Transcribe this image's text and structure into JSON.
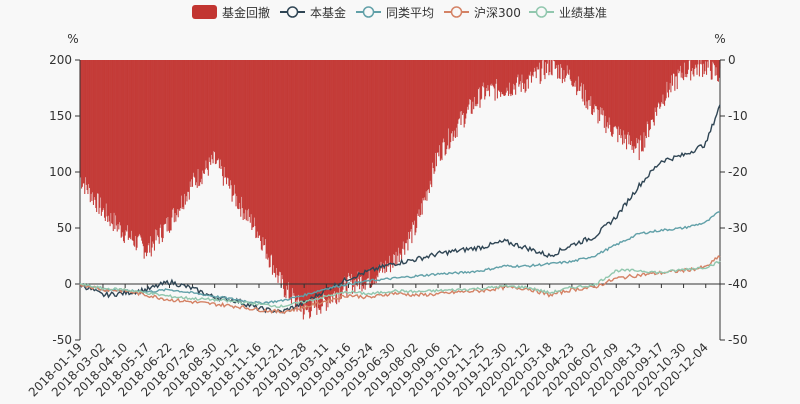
{
  "chart_data": {
    "type": "line",
    "legend": {
      "placement": "top-center",
      "items": [
        {
          "name": "基金回撤",
          "symbol": "bar",
          "color": "#c23531"
        },
        {
          "name": "本基金",
          "symbol": "line-circle",
          "color": "#2f4554"
        },
        {
          "name": "同类平均",
          "symbol": "line-circle",
          "color": "#61a0a8"
        },
        {
          "name": "沪深300",
          "symbol": "line-circle",
          "color": "#d48265"
        },
        {
          "name": "业绩基准",
          "symbol": "line-circle",
          "color": "#91c7ae"
        }
      ]
    },
    "y_left": {
      "unit_label": "%",
      "min": -50,
      "max": 200,
      "ticks": [
        -50,
        0,
        50,
        100,
        150,
        200
      ]
    },
    "y_right": {
      "unit_label": "%",
      "min": -50,
      "max": 0,
      "ticks": [
        -50,
        -40,
        -30,
        -20,
        -10,
        0
      ]
    },
    "grid": false,
    "x_tick_labels": [
      "2018-01-19",
      "2018-03-02",
      "2018-04-10",
      "2018-05-17",
      "2018-06-22",
      "2018-07-26",
      "2018-08-30",
      "2018-10-12",
      "2018-11-16",
      "2018-12-21",
      "2019-01-28",
      "2019-03-11",
      "2019-04-16",
      "2019-05-24",
      "2019-06-30",
      "2019-08-02",
      "2019-09-06",
      "2019-10-21",
      "2019-11-25",
      "2019-12-30",
      "2020-02-12",
      "2020-03-18",
      "2020-04-23",
      "2020-06-02",
      "2020-07-09",
      "2020-08-13",
      "2020-09-17",
      "2020-10-30",
      "2020-12-04"
    ],
    "dates_index": [
      0,
      29,
      57,
      85,
      113,
      142,
      170,
      198,
      226,
      254,
      283,
      311,
      339,
      367,
      395,
      424,
      452,
      480,
      508,
      536,
      565,
      593,
      621,
      649,
      677,
      706,
      734,
      762,
      790,
      808
    ],
    "drawdown": {
      "name": "基金回撤",
      "axis": "right",
      "values": [
        -21,
        -27,
        -31,
        -34,
        -29,
        -22,
        -18,
        -25,
        -31,
        -40,
        -45,
        -43,
        -40,
        -39,
        -36,
        -30,
        -17,
        -11,
        -6,
        -5,
        -4,
        -1,
        -3,
        -9,
        -13,
        -16,
        -7,
        -2,
        -1,
        -3
      ]
    },
    "series": [
      {
        "name": "本基金",
        "axis": "left",
        "color": "#2f4554",
        "values": [
          0,
          -10,
          -8,
          -5,
          2,
          -4,
          -12,
          -15,
          -22,
          -25,
          -17,
          -5,
          5,
          12,
          18,
          22,
          27,
          30,
          33,
          38,
          32,
          25,
          35,
          42,
          60,
          88,
          110,
          115,
          125,
          160
        ]
      },
      {
        "name": "同类平均",
        "axis": "left",
        "color": "#61a0a8",
        "values": [
          0,
          -5,
          -6,
          -7,
          -5,
          -8,
          -11,
          -14,
          -17,
          -15,
          -10,
          -4,
          0,
          3,
          5,
          7,
          9,
          10,
          12,
          16,
          16,
          18,
          20,
          25,
          35,
          45,
          48,
          50,
          55,
          65
        ]
      },
      {
        "name": "沪深300",
        "axis": "left",
        "color": "#d48265",
        "values": [
          0,
          -5,
          -6,
          -10,
          -14,
          -16,
          -18,
          -20,
          -23,
          -25,
          -21,
          -15,
          -10,
          -12,
          -8,
          -10,
          -9,
          -7,
          -6,
          -3,
          -4,
          -10,
          -5,
          -3,
          5,
          8,
          10,
          12,
          15,
          25
        ]
      },
      {
        "name": "业绩基准",
        "axis": "left",
        "color": "#91c7ae",
        "values": [
          0,
          -4,
          -5,
          -8,
          -11,
          -13,
          -14,
          -16,
          -18,
          -20,
          -16,
          -11,
          -7,
          -9,
          -6,
          -7,
          -6,
          -5,
          -4,
          -2,
          -3,
          -8,
          -3,
          -1,
          12,
          12,
          10,
          13,
          15,
          20
        ]
      }
    ]
  }
}
